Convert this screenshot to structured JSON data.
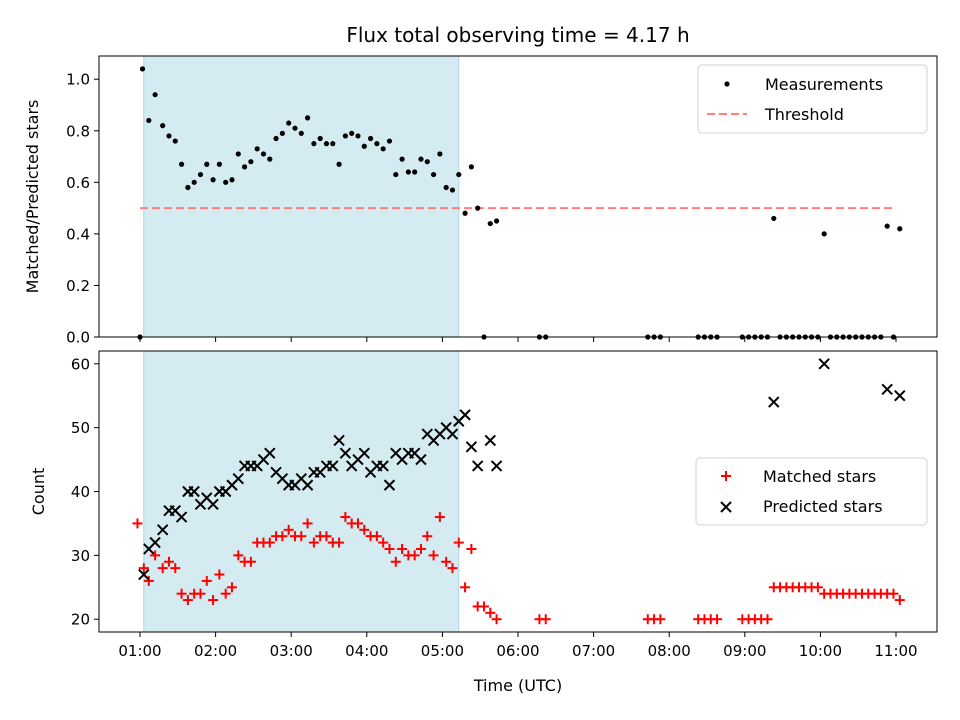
{
  "chart_data": [
    {
      "type": "scatter",
      "title": "Flux total observing time = 4.17 h",
      "ylabel": "Matched/Predicted stars",
      "ylim": [
        0,
        1.09
      ],
      "yticks": [
        "0.0",
        "0.2",
        "0.4",
        "0.6",
        "0.8",
        "1.0"
      ],
      "shaded_span": {
        "x": [
          "01:03",
          "05:13"
        ],
        "color": "#d3ebf1"
      },
      "legend": {
        "placement": "top-right",
        "entries": [
          "Measurements",
          "Threshold"
        ]
      },
      "series": [
        {
          "name": "Measurements",
          "marker": "dot",
          "color": "#000000",
          "points": [
            [
              "01:00",
              0.0
            ],
            [
              "01:02",
              1.04
            ],
            [
              "01:07",
              0.84
            ],
            [
              "01:12",
              0.94
            ],
            [
              "01:18",
              0.82
            ],
            [
              "01:23",
              0.78
            ],
            [
              "01:28",
              0.76
            ],
            [
              "01:33",
              0.67
            ],
            [
              "01:38",
              0.58
            ],
            [
              "01:43",
              0.6
            ],
            [
              "01:48",
              0.63
            ],
            [
              "01:53",
              0.67
            ],
            [
              "01:58",
              0.61
            ],
            [
              "02:03",
              0.67
            ],
            [
              "02:08",
              0.6
            ],
            [
              "02:13",
              0.61
            ],
            [
              "02:18",
              0.71
            ],
            [
              "02:23",
              0.66
            ],
            [
              "02:28",
              0.68
            ],
            [
              "02:33",
              0.73
            ],
            [
              "02:38",
              0.71
            ],
            [
              "02:43",
              0.69
            ],
            [
              "02:48",
              0.77
            ],
            [
              "02:53",
              0.79
            ],
            [
              "02:58",
              0.83
            ],
            [
              "03:03",
              0.81
            ],
            [
              "03:08",
              0.79
            ],
            [
              "03:13",
              0.85
            ],
            [
              "03:18",
              0.75
            ],
            [
              "03:23",
              0.77
            ],
            [
              "03:28",
              0.75
            ],
            [
              "03:33",
              0.75
            ],
            [
              "03:38",
              0.67
            ],
            [
              "03:43",
              0.78
            ],
            [
              "03:48",
              0.79
            ],
            [
              "03:53",
              0.78
            ],
            [
              "03:58",
              0.74
            ],
            [
              "04:03",
              0.77
            ],
            [
              "04:08",
              0.75
            ],
            [
              "04:13",
              0.73
            ],
            [
              "04:18",
              0.76
            ],
            [
              "04:23",
              0.63
            ],
            [
              "04:28",
              0.69
            ],
            [
              "04:33",
              0.64
            ],
            [
              "04:38",
              0.64
            ],
            [
              "04:43",
              0.69
            ],
            [
              "04:48",
              0.68
            ],
            [
              "04:53",
              0.63
            ],
            [
              "04:58",
              0.71
            ],
            [
              "05:03",
              0.58
            ],
            [
              "05:08",
              0.57
            ],
            [
              "05:13",
              0.63
            ],
            [
              "05:18",
              0.48
            ],
            [
              "05:23",
              0.66
            ],
            [
              "05:28",
              0.5
            ],
            [
              "05:33",
              0.0
            ],
            [
              "05:38",
              0.44
            ],
            [
              "05:43",
              0.45
            ],
            [
              "06:17",
              0.0
            ],
            [
              "06:22",
              0.0
            ],
            [
              "07:43",
              0.0
            ],
            [
              "07:48",
              0.0
            ],
            [
              "07:53",
              0.0
            ],
            [
              "08:23",
              0.0
            ],
            [
              "08:28",
              0.0
            ],
            [
              "08:33",
              0.0
            ],
            [
              "08:38",
              0.0
            ],
            [
              "08:58",
              0.0
            ],
            [
              "09:03",
              0.0
            ],
            [
              "09:08",
              0.0
            ],
            [
              "09:13",
              0.0
            ],
            [
              "09:18",
              0.0
            ],
            [
              "09:23",
              0.46
            ],
            [
              "09:28",
              0.0
            ],
            [
              "09:33",
              0.0
            ],
            [
              "09:38",
              0.0
            ],
            [
              "09:43",
              0.0
            ],
            [
              "09:48",
              0.0
            ],
            [
              "09:53",
              0.0
            ],
            [
              "09:58",
              0.0
            ],
            [
              "10:03",
              0.4
            ],
            [
              "10:08",
              0.0
            ],
            [
              "10:13",
              0.0
            ],
            [
              "10:18",
              0.0
            ],
            [
              "10:23",
              0.0
            ],
            [
              "10:28",
              0.0
            ],
            [
              "10:33",
              0.0
            ],
            [
              "10:38",
              0.0
            ],
            [
              "10:43",
              0.0
            ],
            [
              "10:48",
              0.0
            ],
            [
              "10:53",
              0.43
            ],
            [
              "10:58",
              0.0
            ],
            [
              "11:03",
              0.42
            ]
          ]
        },
        {
          "name": "Threshold",
          "marker": "dashed-line",
          "color": "#ff7f7f",
          "points": [
            [
              "01:00",
              0.5
            ],
            [
              "11:00",
              0.5
            ]
          ]
        }
      ]
    },
    {
      "type": "scatter",
      "xlabel": "Time (UTC)",
      "ylabel": "Count",
      "ylim": [
        18,
        62
      ],
      "yticks": [
        "20",
        "30",
        "40",
        "50",
        "60"
      ],
      "xticks": [
        "01:00",
        "02:00",
        "03:00",
        "04:00",
        "05:00",
        "06:00",
        "07:00",
        "08:00",
        "09:00",
        "10:00",
        "11:00"
      ],
      "shaded_span": {
        "x": [
          "01:03",
          "05:13"
        ],
        "color": "#d3ebf1"
      },
      "legend": {
        "placement": "center-right",
        "entries": [
          "Matched stars",
          "Predicted stars"
        ]
      },
      "series": [
        {
          "name": "Matched stars",
          "marker": "plus",
          "color": "#ff0000",
          "points": [
            [
              "00:58",
              35
            ],
            [
              "01:03",
              28
            ],
            [
              "01:07",
              26
            ],
            [
              "01:12",
              30
            ],
            [
              "01:18",
              28
            ],
            [
              "01:23",
              29
            ],
            [
              "01:28",
              28
            ],
            [
              "01:33",
              24
            ],
            [
              "01:38",
              23
            ],
            [
              "01:43",
              24
            ],
            [
              "01:48",
              24
            ],
            [
              "01:53",
              26
            ],
            [
              "01:58",
              23
            ],
            [
              "02:03",
              27
            ],
            [
              "02:08",
              24
            ],
            [
              "02:13",
              25
            ],
            [
              "02:18",
              30
            ],
            [
              "02:23",
              29
            ],
            [
              "02:28",
              29
            ],
            [
              "02:33",
              32
            ],
            [
              "02:38",
              32
            ],
            [
              "02:43",
              32
            ],
            [
              "02:48",
              33
            ],
            [
              "02:53",
              33
            ],
            [
              "02:58",
              34
            ],
            [
              "03:03",
              33
            ],
            [
              "03:08",
              33
            ],
            [
              "03:13",
              35
            ],
            [
              "03:18",
              32
            ],
            [
              "03:23",
              33
            ],
            [
              "03:28",
              33
            ],
            [
              "03:33",
              32
            ],
            [
              "03:38",
              32
            ],
            [
              "03:43",
              36
            ],
            [
              "03:48",
              35
            ],
            [
              "03:53",
              35
            ],
            [
              "03:58",
              34
            ],
            [
              "04:03",
              33
            ],
            [
              "04:08",
              33
            ],
            [
              "04:13",
              32
            ],
            [
              "04:18",
              31
            ],
            [
              "04:23",
              29
            ],
            [
              "04:28",
              31
            ],
            [
              "04:33",
              30
            ],
            [
              "04:38",
              30
            ],
            [
              "04:43",
              31
            ],
            [
              "04:48",
              33
            ],
            [
              "04:53",
              30
            ],
            [
              "04:58",
              36
            ],
            [
              "05:03",
              29
            ],
            [
              "05:08",
              28
            ],
            [
              "05:13",
              32
            ],
            [
              "05:18",
              25
            ],
            [
              "05:23",
              31
            ],
            [
              "05:28",
              22
            ],
            [
              "05:33",
              22
            ],
            [
              "05:38",
              21
            ],
            [
              "05:43",
              20
            ],
            [
              "06:17",
              20
            ],
            [
              "06:22",
              20
            ],
            [
              "07:43",
              20
            ],
            [
              "07:48",
              20
            ],
            [
              "07:53",
              20
            ],
            [
              "08:23",
              20
            ],
            [
              "08:28",
              20
            ],
            [
              "08:33",
              20
            ],
            [
              "08:38",
              20
            ],
            [
              "08:58",
              20
            ],
            [
              "09:03",
              20
            ],
            [
              "09:08",
              20
            ],
            [
              "09:13",
              20
            ],
            [
              "09:18",
              20
            ],
            [
              "09:23",
              25
            ],
            [
              "09:28",
              25
            ],
            [
              "09:33",
              25
            ],
            [
              "09:38",
              25
            ],
            [
              "09:43",
              25
            ],
            [
              "09:48",
              25
            ],
            [
              "09:53",
              25
            ],
            [
              "09:58",
              25
            ],
            [
              "10:03",
              24
            ],
            [
              "10:08",
              24
            ],
            [
              "10:13",
              24
            ],
            [
              "10:18",
              24
            ],
            [
              "10:23",
              24
            ],
            [
              "10:28",
              24
            ],
            [
              "10:33",
              24
            ],
            [
              "10:38",
              24
            ],
            [
              "10:43",
              24
            ],
            [
              "10:48",
              24
            ],
            [
              "10:53",
              24
            ],
            [
              "10:58",
              24
            ],
            [
              "11:03",
              23
            ]
          ]
        },
        {
          "name": "Predicted stars",
          "marker": "x",
          "color": "#000000",
          "points": [
            [
              "01:03",
              27
            ],
            [
              "01:07",
              31
            ],
            [
              "01:12",
              32
            ],
            [
              "01:18",
              34
            ],
            [
              "01:23",
              37
            ],
            [
              "01:28",
              37
            ],
            [
              "01:33",
              36
            ],
            [
              "01:38",
              40
            ],
            [
              "01:43",
              40
            ],
            [
              "01:48",
              38
            ],
            [
              "01:53",
              39
            ],
            [
              "01:58",
              38
            ],
            [
              "02:03",
              40
            ],
            [
              "02:08",
              40
            ],
            [
              "02:13",
              41
            ],
            [
              "02:18",
              42
            ],
            [
              "02:23",
              44
            ],
            [
              "02:28",
              44
            ],
            [
              "02:33",
              44
            ],
            [
              "02:38",
              45
            ],
            [
              "02:43",
              46
            ],
            [
              "02:48",
              43
            ],
            [
              "02:53",
              42
            ],
            [
              "02:58",
              41
            ],
            [
              "03:03",
              41
            ],
            [
              "03:08",
              42
            ],
            [
              "03:13",
              41
            ],
            [
              "03:18",
              43
            ],
            [
              "03:23",
              43
            ],
            [
              "03:28",
              44
            ],
            [
              "03:33",
              44
            ],
            [
              "03:38",
              48
            ],
            [
              "03:43",
              46
            ],
            [
              "03:48",
              44
            ],
            [
              "03:53",
              45
            ],
            [
              "03:58",
              46
            ],
            [
              "04:03",
              43
            ],
            [
              "04:08",
              44
            ],
            [
              "04:13",
              44
            ],
            [
              "04:18",
              41
            ],
            [
              "04:23",
              46
            ],
            [
              "04:28",
              45
            ],
            [
              "04:33",
              46
            ],
            [
              "04:38",
              46
            ],
            [
              "04:43",
              45
            ],
            [
              "04:48",
              49
            ],
            [
              "04:53",
              48
            ],
            [
              "04:58",
              49
            ],
            [
              "05:03",
              50
            ],
            [
              "05:08",
              49
            ],
            [
              "05:13",
              51
            ],
            [
              "05:18",
              52
            ],
            [
              "05:23",
              47
            ],
            [
              "05:28",
              44
            ],
            [
              "05:38",
              48
            ],
            [
              "05:43",
              44
            ],
            [
              "09:23",
              54
            ],
            [
              "10:03",
              60
            ],
            [
              "10:53",
              56
            ],
            [
              "11:03",
              55
            ]
          ]
        }
      ]
    }
  ]
}
